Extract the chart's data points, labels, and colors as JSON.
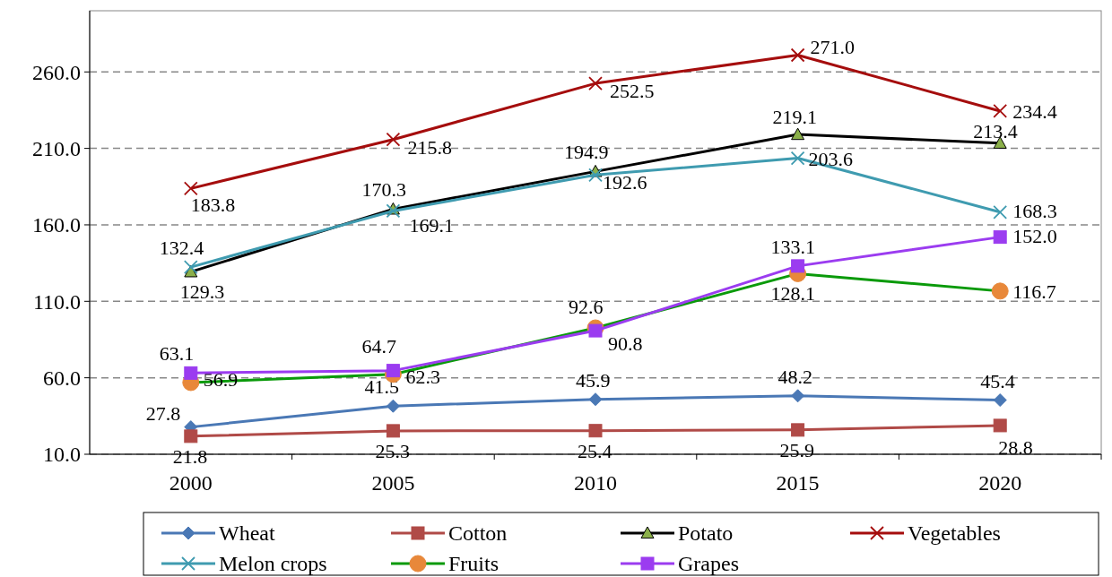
{
  "chart_data": {
    "type": "line",
    "categories": [
      "2000",
      "2005",
      "2010",
      "2015",
      "2020"
    ],
    "ylim": [
      10,
      300
    ],
    "yticks": [
      {
        "value": 10,
        "label": "10.0"
      },
      {
        "value": 60,
        "label": "60.0"
      },
      {
        "value": 110,
        "label": "110.0"
      },
      {
        "value": 160,
        "label": "160.0"
      },
      {
        "value": 210,
        "label": "210.0"
      },
      {
        "value": 260,
        "label": "260.0"
      }
    ],
    "grid": "y",
    "legend": "bottom",
    "series": [
      {
        "name": "Wheat",
        "color": "#4a78b5",
        "marker": "diamond",
        "values": [
          27.8,
          41.5,
          45.9,
          48.2,
          45.4
        ],
        "value_labels": [
          "27.8",
          "41.5",
          "45.9",
          "48.2",
          "45.4"
        ]
      },
      {
        "name": "Cotton",
        "color": "#b04a47",
        "marker": "square",
        "values": [
          21.8,
          25.3,
          25.4,
          25.9,
          28.8
        ],
        "value_labels": [
          "21.8",
          "25.3",
          "25.4",
          "25.9",
          "28.8"
        ]
      },
      {
        "name": "Potato",
        "color": "#000000",
        "marker": "triangle",
        "values": [
          129.3,
          170.3,
          194.9,
          219.1,
          213.4
        ],
        "value_labels": [
          "129.3",
          "170.3",
          "194.9",
          "219.1",
          "213.4"
        ]
      },
      {
        "name": "Vegetables",
        "color": "#a50d0d",
        "marker": "cross",
        "values": [
          183.8,
          215.8,
          252.5,
          271.0,
          234.4
        ],
        "value_labels": [
          "183.8",
          "215.8",
          "252.5",
          "271.0",
          "234.4"
        ]
      },
      {
        "name": "Melon crops",
        "color": "#3f9bb0",
        "marker": "cross",
        "values": [
          132.4,
          169.1,
          192.6,
          203.6,
          168.3
        ],
        "value_labels": [
          "132.4",
          "169.1",
          "192.6",
          "203.6",
          "168.3"
        ]
      },
      {
        "name": "Fruits",
        "color": "#0a9a0a",
        "marker": "circle",
        "values": [
          56.9,
          62.3,
          92.6,
          128.1,
          116.7
        ],
        "value_labels": [
          "56.9",
          "62.3",
          "92.6",
          "128.1",
          "116.7"
        ]
      },
      {
        "name": "Grapes",
        "color": "#9b3cf0",
        "marker": "square",
        "values": [
          63.1,
          64.7,
          90.8,
          133.1,
          152.0
        ],
        "value_labels": [
          "63.1",
          "64.7",
          "90.8",
          "133.1",
          "152.0"
        ]
      }
    ]
  }
}
